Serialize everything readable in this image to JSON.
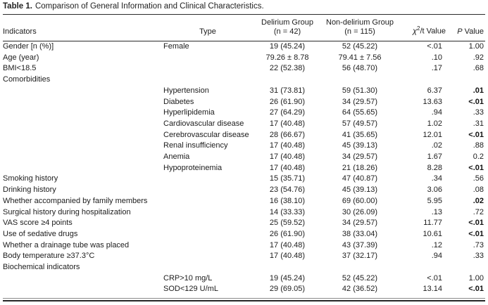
{
  "table": {
    "title_label": "Table 1.",
    "title_text": "Comparison of General Information and Clinical Characteristics.",
    "columns": {
      "indicators": "Indicators",
      "type": "Type",
      "delirium_line1": "Delirium Group",
      "delirium_line2": "(n = 42)",
      "non_delirium_line1": "Non-delirium Group",
      "non_delirium_line2": "(n = 115)",
      "chi_prefix": "χ",
      "chi_sup": "2",
      "chi_suffix": "/t Value",
      "p_italic": "P",
      "p_rest": " Value"
    },
    "rows": [
      {
        "indicator": "Gender [n (%)]",
        "type": "Female",
        "delirium": "19 (45.24)",
        "non_delirium": "52 (45.22)",
        "chi": "<.01",
        "p": "1.00",
        "p_bold": false
      },
      {
        "indicator": "Age (year)",
        "type": "",
        "delirium": "79.26 ± 8.78",
        "non_delirium": "79.41 ± 7.56",
        "chi": ".10",
        "p": ".92",
        "p_bold": false
      },
      {
        "indicator": "BMI<18.5",
        "type": "",
        "delirium": "22 (52.38)",
        "non_delirium": "56 (48.70)",
        "chi": ".17",
        "p": ".68",
        "p_bold": false
      },
      {
        "indicator": "Comorbidities",
        "type": "",
        "delirium": "",
        "non_delirium": "",
        "chi": "",
        "p": "",
        "p_bold": false
      },
      {
        "indicator": "",
        "type": "Hypertension",
        "delirium": "31 (73.81)",
        "non_delirium": "59 (51.30)",
        "chi": "6.37",
        "p": ".01",
        "p_bold": true
      },
      {
        "indicator": "",
        "type": "Diabetes",
        "delirium": "26 (61.90)",
        "non_delirium": "34 (29.57)",
        "chi": "13.63",
        "p": "<.01",
        "p_bold": true
      },
      {
        "indicator": "",
        "type": "Hyperlipidemia",
        "delirium": "27 (64.29)",
        "non_delirium": "64 (55.65)",
        "chi": ".94",
        "p": ".33",
        "p_bold": false
      },
      {
        "indicator": "",
        "type": "Cardiovascular disease",
        "delirium": "17 (40.48)",
        "non_delirium": "57 (49.57)",
        "chi": "1.02",
        "p": ".31",
        "p_bold": false
      },
      {
        "indicator": "",
        "type": "Cerebrovascular disease",
        "delirium": "28 (66.67)",
        "non_delirium": "41 (35.65)",
        "chi": "12.01",
        "p": "<.01",
        "p_bold": true
      },
      {
        "indicator": "",
        "type": "Renal insufficiency",
        "delirium": "17 (40.48)",
        "non_delirium": "45 (39.13)",
        "chi": ".02",
        "p": ".88",
        "p_bold": false
      },
      {
        "indicator": "",
        "type": "Anemia",
        "delirium": "17 (40.48)",
        "non_delirium": "34 (29.57)",
        "chi": "1.67",
        "p": "0.2",
        "p_bold": false
      },
      {
        "indicator": "",
        "type": "Hypoproteinemia",
        "delirium": "17 (40.48)",
        "non_delirium": "21 (18.26)",
        "chi": "8.28",
        "p": "<.01",
        "p_bold": true
      },
      {
        "indicator": "Smoking history",
        "type": "",
        "delirium": "15 (35.71)",
        "non_delirium": "47 (40.87)",
        "chi": ".34",
        "p": ".56",
        "p_bold": false
      },
      {
        "indicator": "Drinking history",
        "type": "",
        "delirium": "23 (54.76)",
        "non_delirium": "45 (39.13)",
        "chi": "3.06",
        "p": ".08",
        "p_bold": false
      },
      {
        "indicator": "Whether accompanied by family members",
        "type": "",
        "delirium": "16 (38.10)",
        "non_delirium": "69 (60.00)",
        "chi": "5.95",
        "p": ".02",
        "p_bold": true
      },
      {
        "indicator": "Surgical history during hospitalization",
        "type": "",
        "delirium": "14 (33.33)",
        "non_delirium": "30 (26.09)",
        "chi": ".13",
        "p": ".72",
        "p_bold": false
      },
      {
        "indicator": "VAS score ≥4 points",
        "type": "",
        "delirium": "25 (59.52)",
        "non_delirium": "34 (29.57)",
        "chi": "11.77",
        "p": "<.01",
        "p_bold": true
      },
      {
        "indicator": "Use of sedative drugs",
        "type": "",
        "delirium": "26 (61.90)",
        "non_delirium": "38 (33.04)",
        "chi": "10.61",
        "p": "<.01",
        "p_bold": true
      },
      {
        "indicator": "Whether a drainage tube was placed",
        "type": "",
        "delirium": "17 (40.48)",
        "non_delirium": "43 (37.39)",
        "chi": ".12",
        "p": ".73",
        "p_bold": false
      },
      {
        "indicator": "Body temperature ≥37.3°C",
        "type": "",
        "delirium": "17 (40.48)",
        "non_delirium": "37 (32.17)",
        "chi": ".94",
        "p": ".33",
        "p_bold": false
      },
      {
        "indicator": "Biochemical indicators",
        "type": "",
        "delirium": "",
        "non_delirium": "",
        "chi": "",
        "p": "",
        "p_bold": false
      },
      {
        "indicator": "",
        "type": "CRP>10 mg/L",
        "delirium": "19 (45.24)",
        "non_delirium": "52 (45.22)",
        "chi": "<.01",
        "p": "1.00",
        "p_bold": false
      },
      {
        "indicator": "",
        "type": "SOD<129 U/mL",
        "delirium": "29 (69.05)",
        "non_delirium": "42 (36.52)",
        "chi": "13.14",
        "p": "<.01",
        "p_bold": true
      }
    ]
  }
}
